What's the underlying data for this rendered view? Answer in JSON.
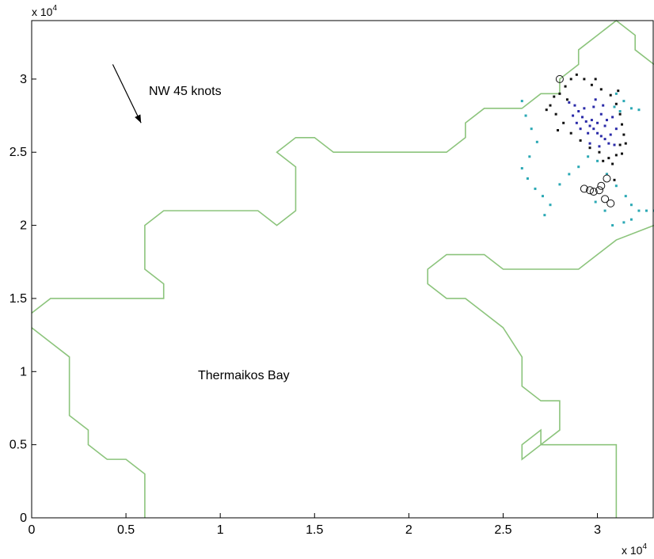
{
  "chart_data": {
    "type": "scatter",
    "title": "",
    "xlabel": "",
    "ylabel": "",
    "xlim": [
      0,
      33000
    ],
    "ylim": [
      0,
      34000
    ],
    "x_ticks": [
      0,
      5000,
      10000,
      15000,
      20000,
      25000,
      30000
    ],
    "x_tick_labels": [
      "0",
      "0.5",
      "1",
      "1.5",
      "2",
      "2.5",
      "3"
    ],
    "y_ticks": [
      0,
      5000,
      10000,
      15000,
      20000,
      25000,
      30000
    ],
    "y_tick_labels": [
      "0",
      "0.5",
      "1",
      "1.5",
      "2",
      "2.5",
      "3"
    ],
    "x_multiplier": {
      "base": "x 10",
      "exp": "4"
    },
    "y_multiplier": {
      "base": "x 10",
      "exp": "4"
    },
    "grid": false,
    "annotations": {
      "wind": "NW 45 knots",
      "bay": "Thermaikos Bay"
    },
    "wind_arrow": {
      "from": [
        4300,
        31000
      ],
      "to": [
        5800,
        27000
      ]
    },
    "coastlines": [
      [
        [
          0,
          14000
        ],
        [
          1000,
          15000
        ],
        [
          7000,
          15000
        ],
        [
          7000,
          16000
        ],
        [
          6000,
          17000
        ],
        [
          6000,
          20000
        ],
        [
          7000,
          21000
        ],
        [
          12000,
          21000
        ],
        [
          13000,
          20000
        ],
        [
          14000,
          21000
        ],
        [
          14000,
          24000
        ],
        [
          13000,
          25000
        ],
        [
          14000,
          26000
        ],
        [
          15000,
          26000
        ],
        [
          16000,
          25000
        ],
        [
          22000,
          25000
        ],
        [
          23000,
          26000
        ],
        [
          23000,
          27000
        ],
        [
          24000,
          28000
        ],
        [
          26000,
          28000
        ],
        [
          27000,
          29000
        ],
        [
          28000,
          29000
        ],
        [
          28000,
          30000
        ],
        [
          29000,
          31000
        ],
        [
          29000,
          32000
        ],
        [
          30000,
          33000
        ],
        [
          31000,
          34000
        ],
        [
          32000,
          33000
        ],
        [
          32000,
          32000
        ],
        [
          33000,
          31000
        ]
      ],
      [
        [
          0,
          13000
        ],
        [
          1000,
          12000
        ],
        [
          2000,
          11000
        ],
        [
          2000,
          7000
        ],
        [
          3000,
          6000
        ],
        [
          3000,
          5000
        ],
        [
          4000,
          4000
        ],
        [
          5000,
          4000
        ],
        [
          6000,
          3000
        ],
        [
          6000,
          0
        ]
      ],
      [
        [
          33000,
          20000
        ],
        [
          31000,
          19000
        ],
        [
          30000,
          18000
        ],
        [
          29000,
          17000
        ],
        [
          25000,
          17000
        ],
        [
          24000,
          18000
        ],
        [
          22000,
          18000
        ],
        [
          21000,
          17000
        ],
        [
          21000,
          16000
        ],
        [
          22000,
          15000
        ],
        [
          23000,
          15000
        ],
        [
          24000,
          14000
        ],
        [
          25000,
          13000
        ],
        [
          26000,
          11000
        ],
        [
          26000,
          9000
        ],
        [
          27000,
          8000
        ],
        [
          28000,
          8000
        ],
        [
          28000,
          6000
        ],
        [
          27000,
          5000
        ],
        [
          27000,
          6000
        ],
        [
          26000,
          5000
        ],
        [
          26000,
          4000
        ],
        [
          27000,
          5000
        ],
        [
          31000,
          5000
        ],
        [
          31000,
          0
        ]
      ]
    ],
    "series": [
      {
        "color": "#2a2aa8",
        "points": [
          [
            28800,
            28200
          ],
          [
            29000,
            27800
          ],
          [
            29200,
            27400
          ],
          [
            29400,
            27100
          ],
          [
            29600,
            26800
          ],
          [
            29800,
            26600
          ],
          [
            30000,
            26300
          ],
          [
            30200,
            26100
          ],
          [
            30400,
            25900
          ],
          [
            30600,
            25600
          ],
          [
            30200,
            27600
          ],
          [
            29800,
            28100
          ],
          [
            30000,
            27000
          ],
          [
            29500,
            26300
          ],
          [
            28900,
            27000
          ],
          [
            30400,
            26800
          ],
          [
            30700,
            26200
          ],
          [
            30900,
            25500
          ],
          [
            29300,
            28000
          ],
          [
            29700,
            27200
          ],
          [
            30100,
            25400
          ],
          [
            30500,
            27200
          ],
          [
            28500,
            28400
          ],
          [
            29900,
            28600
          ],
          [
            30300,
            28200
          ],
          [
            30800,
            27400
          ],
          [
            31000,
            26600
          ],
          [
            29100,
            26600
          ],
          [
            28700,
            27500
          ],
          [
            29600,
            25600
          ]
        ]
      },
      {
        "color": "#111111",
        "points": [
          [
            28000,
            29000
          ],
          [
            28300,
            29500
          ],
          [
            28600,
            30000
          ],
          [
            28900,
            30300
          ],
          [
            29300,
            30000
          ],
          [
            29700,
            29600
          ],
          [
            30200,
            29300
          ],
          [
            30700,
            28900
          ],
          [
            31000,
            28300
          ],
          [
            31200,
            27600
          ],
          [
            31300,
            26900
          ],
          [
            31400,
            26200
          ],
          [
            31200,
            25500
          ],
          [
            31000,
            24800
          ],
          [
            30600,
            24600
          ],
          [
            30100,
            25000
          ],
          [
            29600,
            25300
          ],
          [
            29100,
            25800
          ],
          [
            28600,
            26300
          ],
          [
            28200,
            27000
          ],
          [
            27800,
            27600
          ],
          [
            27500,
            28200
          ],
          [
            27700,
            28800
          ],
          [
            28400,
            28600
          ],
          [
            30300,
            24400
          ],
          [
            30800,
            24200
          ],
          [
            31300,
            24900
          ],
          [
            31500,
            25600
          ],
          [
            31100,
            29200
          ],
          [
            29900,
            30000
          ],
          [
            30500,
            23500
          ],
          [
            30900,
            23100
          ],
          [
            27300,
            27900
          ],
          [
            27900,
            26500
          ]
        ]
      },
      {
        "color": "#2aa8b4",
        "points": [
          [
            26000,
            28500
          ],
          [
            26200,
            27500
          ],
          [
            26500,
            26600
          ],
          [
            26800,
            25700
          ],
          [
            26400,
            24700
          ],
          [
            26000,
            23900
          ],
          [
            26300,
            23200
          ],
          [
            26700,
            22500
          ],
          [
            27100,
            22000
          ],
          [
            27500,
            21400
          ],
          [
            27200,
            20700
          ],
          [
            28000,
            22800
          ],
          [
            28500,
            23500
          ],
          [
            29000,
            24000
          ],
          [
            29500,
            24700
          ],
          [
            30000,
            24400
          ],
          [
            30500,
            23500
          ],
          [
            31000,
            22700
          ],
          [
            31500,
            22000
          ],
          [
            31800,
            21400
          ],
          [
            32200,
            21000
          ],
          [
            32600,
            21000
          ],
          [
            33000,
            21000
          ],
          [
            31800,
            20400
          ],
          [
            31400,
            20200
          ],
          [
            30800,
            20000
          ],
          [
            30400,
            21000
          ],
          [
            29900,
            21600
          ],
          [
            31000,
            29000
          ],
          [
            31400,
            28500
          ],
          [
            31800,
            28000
          ],
          [
            32200,
            27900
          ],
          [
            30900,
            28100
          ],
          [
            31200,
            27800
          ]
        ]
      },
      {
        "color": "#111111",
        "marker": "circle-open",
        "points": [
          [
            28000,
            30000
          ],
          [
            29300,
            22500
          ],
          [
            29600,
            22400
          ],
          [
            29800,
            22300
          ],
          [
            30100,
            22400
          ],
          [
            30200,
            22700
          ],
          [
            30500,
            23200
          ],
          [
            30400,
            21800
          ],
          [
            30700,
            21500
          ]
        ]
      }
    ]
  }
}
